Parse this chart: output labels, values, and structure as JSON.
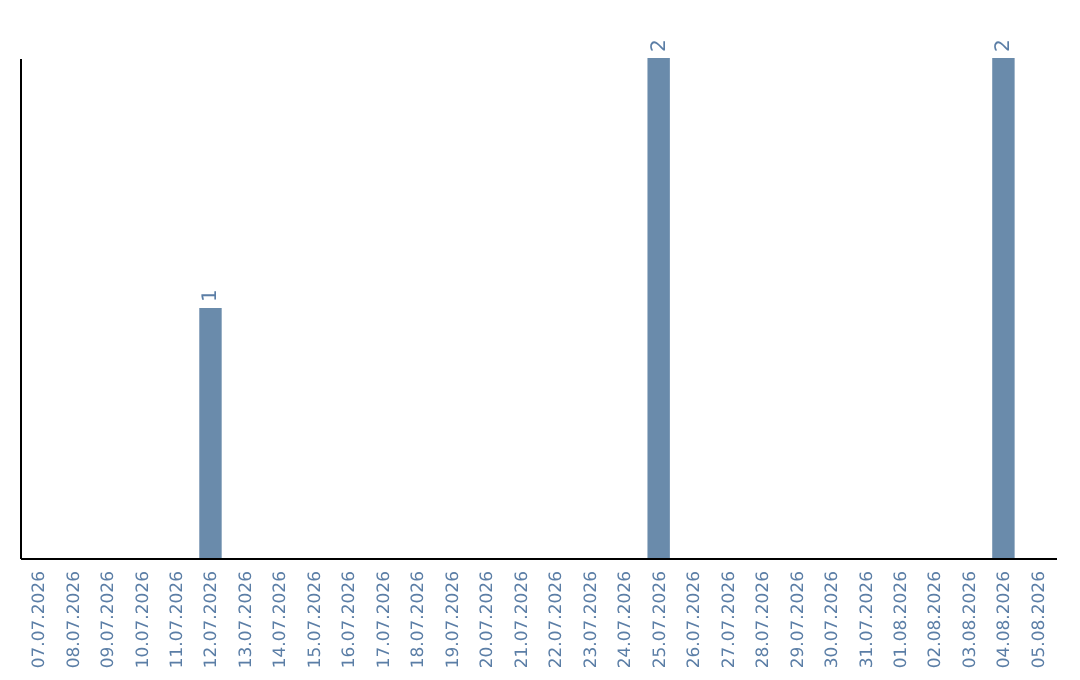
{
  "chart_data": {
    "type": "bar",
    "categories": [
      "07.07.2026",
      "08.07.2026",
      "09.07.2026",
      "10.07.2026",
      "11.07.2026",
      "12.07.2026",
      "13.07.2026",
      "14.07.2026",
      "15.07.2026",
      "16.07.2026",
      "17.07.2026",
      "18.07.2026",
      "19.07.2026",
      "20.07.2026",
      "21.07.2026",
      "22.07.2026",
      "23.07.2026",
      "24.07.2026",
      "25.07.2026",
      "26.07.2026",
      "27.07.2026",
      "28.07.2026",
      "29.07.2026",
      "30.07.2026",
      "31.07.2026",
      "01.08.2026",
      "02.08.2026",
      "03.08.2026",
      "04.08.2026",
      "05.08.2026"
    ],
    "values": [
      0,
      0,
      0,
      0,
      0,
      1,
      0,
      0,
      0,
      0,
      0,
      0,
      0,
      0,
      0,
      0,
      0,
      0,
      2,
      0,
      0,
      0,
      0,
      0,
      0,
      0,
      0,
      0,
      2,
      0
    ],
    "value_labels": [
      null,
      null,
      null,
      null,
      null,
      "1",
      null,
      null,
      null,
      null,
      null,
      null,
      null,
      null,
      null,
      null,
      null,
      null,
      "2",
      null,
      null,
      null,
      null,
      null,
      null,
      null,
      null,
      null,
      "2",
      null
    ],
    "color": "#6a8bab",
    "ylim": [
      0,
      2
    ],
    "tick_labels": "x",
    "grid": false
  }
}
